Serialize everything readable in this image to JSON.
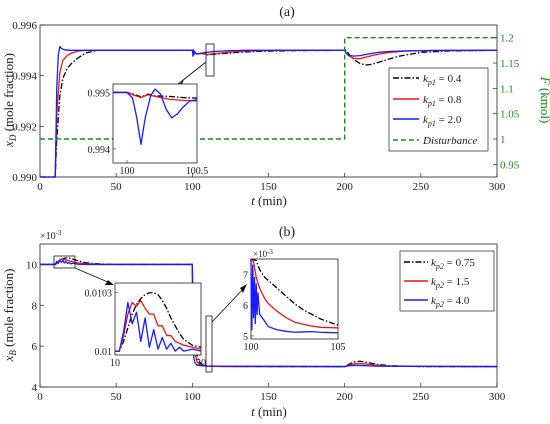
{
  "chart_data": [
    {
      "panel": "(a)",
      "type": "line",
      "xlabel": "t",
      "xunit": "(min)",
      "ylabel_main": "x",
      "ylabel_sub": "D",
      "ylabel_unit": "(mole fraction)",
      "y2label": "F",
      "y2label_unit": "(kmol)",
      "xlim": [
        0,
        300
      ],
      "ylim": [
        0.99,
        0.996
      ],
      "y2lim": [
        0.925,
        1.225
      ],
      "xticks": [
        0,
        50,
        100,
        150,
        200,
        250,
        300
      ],
      "yticks": [
        0.99,
        0.992,
        0.994,
        0.996
      ],
      "y2ticks": [
        0.95,
        1,
        1.05,
        1.1,
        1.15,
        1.2
      ],
      "legend_location": "right",
      "series": [
        {
          "name": "k_p1 = 0.4",
          "label_main": "k",
          "label_sub": "p1",
          "label_val": " = 0.4",
          "color": "#000000",
          "dash": "dashdot",
          "x": [
            0,
            10,
            11,
            13,
            15,
            18,
            21,
            25,
            30,
            38,
            50,
            100,
            101,
            103,
            106,
            110,
            115,
            122,
            130,
            140,
            150,
            170,
            200,
            201,
            204,
            207,
            210,
            214,
            218,
            225,
            235,
            250,
            270,
            300
          ],
          "y": [
            0.99,
            0.99,
            0.9915,
            0.9932,
            0.9939,
            0.9943,
            0.9945,
            0.9947,
            0.9949,
            0.995,
            0.995,
            0.995,
            0.99494,
            0.99485,
            0.99488,
            0.99482,
            0.99485,
            0.99488,
            0.99492,
            0.99495,
            0.99497,
            0.99499,
            0.995,
            0.995,
            0.99475,
            0.9946,
            0.99448,
            0.99442,
            0.99445,
            0.99458,
            0.99476,
            0.99492,
            0.99498,
            0.995
          ]
        },
        {
          "name": "k_p1 = 0.8",
          "label_main": "k",
          "label_sub": "p1",
          "label_val": " = 0.8",
          "color": "#e8161b",
          "dash": "solid",
          "x": [
            0,
            10,
            11,
            13,
            15,
            18,
            21,
            25,
            30,
            38,
            100,
            101,
            103,
            106,
            110,
            115,
            122,
            130,
            140,
            155,
            200,
            201,
            203,
            206,
            210,
            214,
            220,
            228,
            240,
            260,
            300
          ],
          "y": [
            0.99,
            0.99,
            0.9925,
            0.9941,
            0.9946,
            0.9948,
            0.9949,
            0.99497,
            0.995,
            0.995,
            0.995,
            0.99492,
            0.99485,
            0.99488,
            0.99484,
            0.99487,
            0.99492,
            0.99496,
            0.99498,
            0.995,
            0.995,
            0.99488,
            0.99477,
            0.99468,
            0.99467,
            0.99473,
            0.99482,
            0.99491,
            0.99497,
            0.995,
            0.995
          ]
        },
        {
          "name": "k_p1 = 2.0",
          "label_main": "k",
          "label_sub": "p1",
          "label_val": " = 2.0",
          "color": "#1a1aff",
          "dash": "solid",
          "x": [
            0,
            10,
            11,
            12,
            13,
            14,
            16,
            20,
            30,
            100,
            100.2,
            100.4,
            100.6,
            101,
            101.5,
            102,
            103,
            105,
            108,
            112,
            118,
            125,
            135,
            150,
            200,
            201,
            203,
            206,
            210,
            215,
            222,
            230,
            245,
            300
          ],
          "y": [
            0.99,
            0.99,
            0.9935,
            0.9948,
            0.99515,
            0.99508,
            0.99502,
            0.995,
            0.995,
            0.995,
            0.99494,
            0.99477,
            0.99502,
            0.99482,
            0.99497,
            0.99489,
            0.99486,
            0.99488,
            0.99491,
            0.99494,
            0.99497,
            0.99499,
            0.995,
            0.995,
            0.995,
            0.99488,
            0.9948,
            0.99477,
            0.99479,
            0.99485,
            0.99492,
            0.99496,
            0.99499,
            0.995
          ]
        },
        {
          "name": "Disturbance",
          "color": "#138e13",
          "dash": "dashed",
          "axis": "right",
          "x": [
            0,
            200,
            200,
            300
          ],
          "y": [
            1,
            1,
            1.2,
            1.2
          ]
        }
      ],
      "inset": {
        "xlim": [
          99.9,
          100.5
        ],
        "ylim": [
          0.99375,
          0.99515
        ],
        "xticks": [
          100,
          100.5
        ],
        "xtick_labels": [
          "100",
          "100.5"
        ],
        "yticks": [
          0.994,
          0.995
        ],
        "ytick_labels": [
          "0.994",
          "0.995"
        ],
        "series": [
          {
            "color": "#000000",
            "dash": "dashdot",
            "x": [
              99.9,
              99.95,
              100,
              100.05,
              100.1,
              100.15,
              100.2,
              100.3,
              100.4,
              100.5
            ],
            "y": [
              0.995,
              0.995,
              0.995,
              0.99497,
              0.99492,
              0.99497,
              0.99494,
              0.99493,
              0.99491,
              0.9949
            ]
          },
          {
            "color": "#e8161b",
            "dash": "solid",
            "x": [
              99.9,
              99.95,
              100,
              100.05,
              100.1,
              100.15,
              100.2,
              100.3,
              100.4,
              100.5
            ],
            "y": [
              0.995,
              0.995,
              0.995,
              0.99495,
              0.99491,
              0.99496,
              0.99493,
              0.99488,
              0.99486,
              0.99485
            ]
          },
          {
            "color": "#1a1aff",
            "dash": "solid",
            "x": [
              99.9,
              99.95,
              100,
              100.04,
              100.07,
              100.1,
              100.13,
              100.17,
              100.2,
              100.24,
              100.28,
              100.32,
              100.36,
              100.4,
              100.45,
              100.5
            ],
            "y": [
              0.995,
              0.995,
              0.995,
              0.9949,
              0.99455,
              0.99408,
              0.99455,
              0.99495,
              0.99506,
              0.99497,
              0.9947,
              0.99455,
              0.99462,
              0.99474,
              0.99485,
              0.99487
            ]
          }
        ]
      }
    },
    {
      "panel": "(b)",
      "type": "line",
      "xlabel": "t",
      "xunit": "(min)",
      "ylabel_main": "x",
      "ylabel_sub": "B",
      "ylabel_unit": "(mole fraction)",
      "multiplier": "×10",
      "multiplier_exp": "-3",
      "xlim": [
        0,
        300
      ],
      "ylim": [
        4,
        11
      ],
      "xticks": [
        0,
        50,
        100,
        150,
        200,
        250,
        300
      ],
      "yticks": [
        4,
        6,
        8,
        10
      ],
      "legend_location": "top-right",
      "series": [
        {
          "name": "k_p2 = 0.75",
          "label_main": "k",
          "label_sub": "p2",
          "label_val": " = 0.75",
          "color": "#000000",
          "dash": "dashdot",
          "x": [
            0,
            10,
            12,
            14,
            17,
            20,
            24,
            30,
            40,
            50,
            100,
            100.5,
            101,
            102,
            103,
            104,
            106,
            110,
            120,
            150,
            200,
            203,
            206,
            210,
            215,
            222,
            230,
            250,
            300
          ],
          "y": [
            10,
            10,
            10.1,
            10.25,
            10.32,
            10.3,
            10.2,
            10.08,
            10.02,
            10,
            10,
            7.3,
            6.9,
            6.1,
            5.6,
            5.3,
            5.1,
            5.03,
            5.01,
            5,
            5,
            5.12,
            5.22,
            5.26,
            5.2,
            5.1,
            5.04,
            5,
            5
          ]
        },
        {
          "name": "k_p2 = 1.5",
          "label_main": "k",
          "label_sub": "p2",
          "label_val": " = 1.5",
          "color": "#e8161b",
          "dash": "solid",
          "x": [
            0,
            10,
            12,
            14,
            17,
            20,
            24,
            30,
            40,
            100,
            100.5,
            101,
            102,
            103,
            105,
            110,
            120,
            200,
            203,
            206,
            210,
            215,
            222,
            235,
            300
          ],
          "y": [
            10,
            10,
            10.15,
            10.27,
            10.22,
            10.16,
            10.08,
            10.03,
            10,
            10,
            7.0,
            6.3,
            5.6,
            5.25,
            5.1,
            5.02,
            5,
            5,
            5.08,
            5.13,
            5.15,
            5.12,
            5.06,
            5.01,
            5
          ]
        },
        {
          "name": "k_p2 = 4.0",
          "label_main": "k",
          "label_sub": "p2",
          "label_val": " = 4.0",
          "color": "#1a1aff",
          "dash": "solid",
          "x": [
            0,
            10,
            11,
            12,
            13,
            14,
            15,
            16,
            17,
            18,
            19,
            20,
            22,
            25,
            30,
            40,
            100,
            100.3,
            100.6,
            101,
            101.5,
            102,
            103,
            105,
            110,
            200,
            203,
            207,
            212,
            220,
            300
          ],
          "y": [
            10,
            10,
            10.15,
            10.05,
            10.22,
            10.1,
            10.2,
            10.07,
            10.15,
            10.05,
            10.1,
            10.03,
            10.06,
            10.01,
            10,
            10,
            10,
            6.8,
            5.9,
            5.4,
            5.25,
            5.15,
            5.08,
            5.05,
            5.02,
            5,
            5.04,
            5.06,
            5.05,
            5.02,
            5
          ]
        }
      ],
      "inset_left": {
        "xlim": [
          10,
          30
        ],
        "ylim": [
          0.00998,
          0.01035
        ],
        "xticks": [
          10,
          30
        ],
        "xtick_labels": [
          "10",
          "30"
        ],
        "yticks": [
          0.01,
          0.0103
        ],
        "ytick_labels": [
          "0.01",
          "0.0103"
        ],
        "series": [
          {
            "color": "#000000",
            "dash": "dashdot",
            "x": [
              10,
              11,
              12,
              13,
              14,
              15,
              16,
              17,
              18,
              19,
              20,
              21,
              22,
              23,
              24,
              25,
              26,
              28,
              30
            ],
            "y": [
              0.01,
              0.01,
              0.01005,
              0.01012,
              0.01019,
              0.01024,
              0.01027,
              0.01029,
              0.0103,
              0.0103,
              0.01029,
              0.01026,
              0.01022,
              0.01017,
              0.01013,
              0.01009,
              0.01006,
              0.01003,
              0.01002
            ]
          },
          {
            "color": "#e8161b",
            "dash": "solid",
            "x": [
              10,
              11,
              12,
              13,
              14,
              15,
              16,
              17,
              18,
              19,
              20,
              21,
              22,
              23,
              24,
              25,
              26,
              28,
              30
            ],
            "y": [
              0.01,
              0.01,
              0.01008,
              0.01019,
              0.01025,
              0.01023,
              0.01026,
              0.01022,
              0.01019,
              0.01019,
              0.01013,
              0.01013,
              0.01008,
              0.01008,
              0.01005,
              0.01004,
              0.01003,
              0.01002,
              0.01001
            ]
          },
          {
            "color": "#1a1aff",
            "dash": "solid",
            "x": [
              10,
              11,
              12,
              13,
              14,
              15,
              16,
              17,
              18,
              19,
              20,
              21,
              22,
              23,
              24,
              25,
              26,
              28,
              30
            ],
            "y": [
              0.01,
              0.01,
              0.0101,
              0.01025,
              0.01014,
              0.0102,
              0.01005,
              0.01017,
              0.01002,
              0.01011,
              0.01001,
              0.01007,
              0.01001,
              0.01004,
              0.01,
              0.01002,
              0.01,
              0.01001,
              0.01
            ]
          }
        ]
      },
      "inset_right": {
        "xlim": [
          100,
          105
        ],
        "ylim": [
          4.9,
          7.5
        ],
        "xticks": [
          100,
          105
        ],
        "xtick_labels": [
          "100",
          "105"
        ],
        "yticks": [
          5,
          6,
          7
        ],
        "ytick_labels": [
          "5",
          "6",
          "7"
        ],
        "multiplier": "×10",
        "multiplier_exp": "-3",
        "series": [
          {
            "color": "#000000",
            "dash": "dashdot",
            "x": [
              100,
              100.3,
              100.5,
              100.8,
              101,
              101.5,
              102,
              102.5,
              103,
              103.5,
              104,
              104.5,
              105
            ],
            "y": [
              7.5,
              7.45,
              7.15,
              6.9,
              6.8,
              6.55,
              6.3,
              6.05,
              5.85,
              5.7,
              5.55,
              5.45,
              5.35
            ]
          },
          {
            "color": "#e8161b",
            "dash": "solid",
            "x": [
              100,
              100.15,
              100.3,
              100.5,
              100.8,
              101,
              101.5,
              102,
              102.5,
              103,
              103.5,
              104,
              104.5,
              105
            ],
            "y": [
              7.5,
              7.4,
              6.9,
              6.55,
              6.2,
              6.05,
              5.8,
              5.6,
              5.45,
              5.38,
              5.32,
              5.28,
              5.27,
              5.26
            ]
          },
          {
            "color": "#1a1aff",
            "dash": "solid",
            "x": [
              100,
              100.05,
              100.1,
              100.15,
              100.2,
              100.25,
              100.3,
              100.35,
              100.4,
              100.5,
              100.7,
              101,
              101.5,
              102,
              102.5,
              103,
              103.5,
              104,
              104.5,
              105
            ],
            "y": [
              7.5,
              5.2,
              7.3,
              5.6,
              6.9,
              5.4,
              6.7,
              5.7,
              6.4,
              5.7,
              5.55,
              5.3,
              5.2,
              5.15,
              5.12,
              5.13,
              5.14,
              5.12,
              5.11,
              5.1
            ]
          }
        ]
      }
    }
  ]
}
